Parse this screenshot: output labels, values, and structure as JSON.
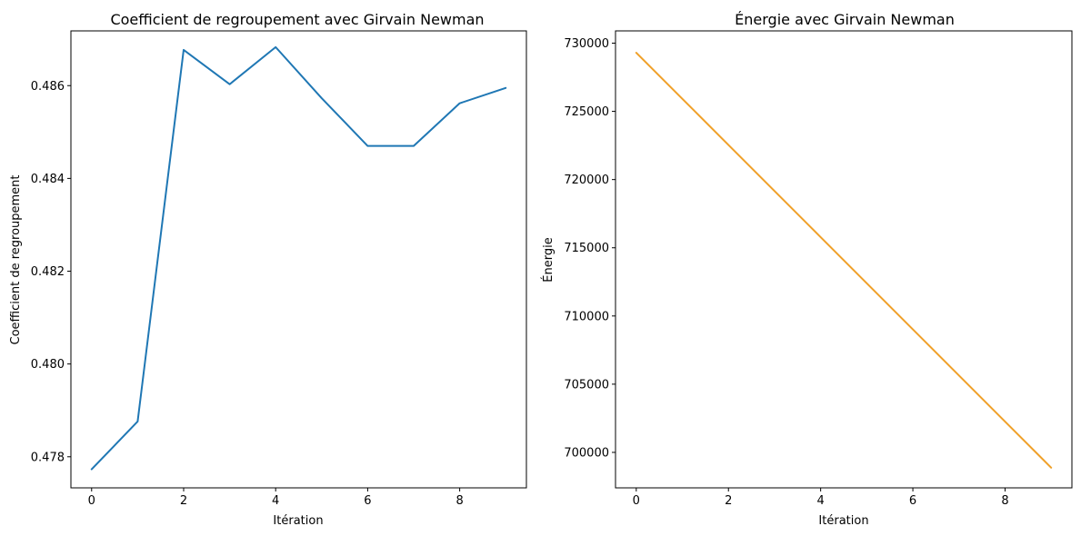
{
  "chart_data": [
    {
      "type": "line",
      "title": "Coefficient de regroupement avec Girvain Newman",
      "xlabel": "Itération",
      "ylabel": "Coefficient de regroupement",
      "xlim": [
        -0.45,
        9.45
      ],
      "ylim": [
        0.47733,
        0.48718
      ],
      "xticks": [
        0,
        2,
        4,
        6,
        8
      ],
      "yticks": [
        0.478,
        0.48,
        0.482,
        0.484,
        0.486
      ],
      "ytick_decimals": 3,
      "color": "#1f77b4",
      "x": [
        0,
        1,
        2,
        3,
        4,
        5,
        6,
        7,
        8,
        9
      ],
      "y": [
        0.47773,
        0.47876,
        0.48677,
        0.48603,
        0.48683,
        0.48573,
        0.4847,
        0.4847,
        0.48562,
        0.48595
      ]
    },
    {
      "type": "line",
      "title": "Énergie avec Girvain Newman",
      "xlabel": "Itération",
      "ylabel": "Énergie",
      "xlim": [
        -0.45,
        9.45
      ],
      "ylim": [
        697400,
        730900
      ],
      "xticks": [
        0,
        2,
        4,
        6,
        8
      ],
      "yticks": [
        700000,
        705000,
        710000,
        715000,
        720000,
        725000,
        730000
      ],
      "ytick_decimals": 0,
      "color": "#f0a028",
      "x": [
        0,
        1,
        2,
        3,
        4,
        5,
        6,
        7,
        8,
        9
      ],
      "y": [
        729300,
        725920,
        722540,
        719160,
        715780,
        712400,
        709020,
        705640,
        702260,
        698880
      ]
    }
  ]
}
